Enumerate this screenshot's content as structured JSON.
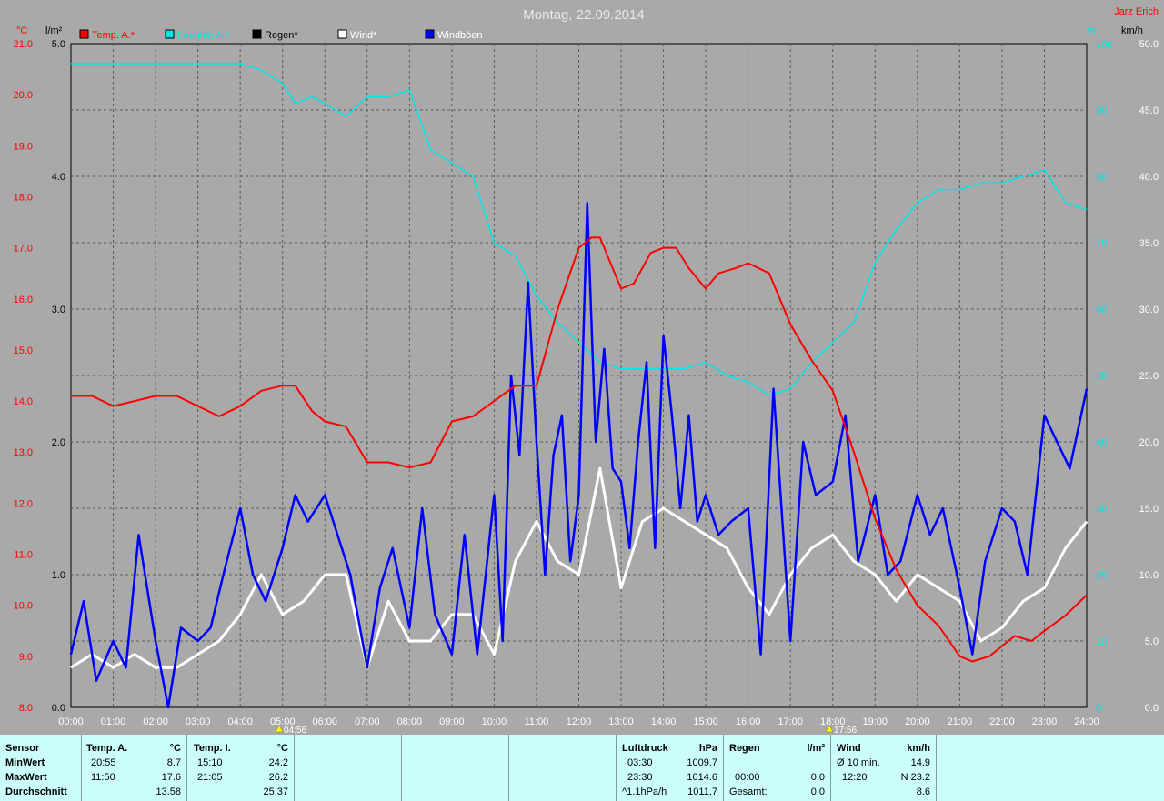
{
  "title": "Montag, 22.09.2014",
  "author": "Jarz Erich",
  "colors": {
    "temp": "#ff0000",
    "humid": "#00e5e5",
    "rain": "#000000",
    "wind": "#ffffff",
    "gust": "#0000ff",
    "plot_bg": "#a9a9a9",
    "panel_bg": "#ccfdfd"
  },
  "axes": {
    "temp_unit": "°C",
    "rain_unit": "l/m²",
    "humid_unit": "%",
    "wind_unit": "km/h",
    "temp_ticks": [
      "8.0",
      "9.0",
      "10.0",
      "11.0",
      "12.0",
      "13.0",
      "14.0",
      "15.0",
      "16.0",
      "17.0",
      "18.0",
      "19.0",
      "20.0",
      "21.0"
    ],
    "rain_ticks": [
      "0.0",
      "1.0",
      "2.0",
      "3.0",
      "4.0",
      "5.0"
    ],
    "humid_ticks": [
      "0",
      "10",
      "20",
      "30",
      "40",
      "50",
      "60",
      "70",
      "80",
      "90",
      "100"
    ],
    "wind_ticks": [
      "0.0",
      "5.0",
      "10.0",
      "15.0",
      "20.0",
      "25.0",
      "30.0",
      "35.0",
      "40.0",
      "45.0",
      "50.0"
    ],
    "time_ticks": [
      "00:00",
      "01:00",
      "02:00",
      "03:00",
      "04:00",
      "05:00",
      "06:00",
      "07:00",
      "08:00",
      "09:00",
      "10:00",
      "11:00",
      "12:00",
      "13:00",
      "14:00",
      "15:00",
      "16:00",
      "17:00",
      "18:00",
      "19:00",
      "20:00",
      "21:00",
      "22:00",
      "23:00",
      "24:00"
    ],
    "sunrise": "04:56",
    "sunset": "17:56"
  },
  "chart_data": {
    "type": "line",
    "x_unit": "hours",
    "ylim_temp": [
      8,
      21
    ],
    "ylim_rain": [
      0,
      5
    ],
    "ylim_humid": [
      0,
      100
    ],
    "ylim_wind": [
      0,
      50
    ],
    "grid": true,
    "series": [
      {
        "name": "Temp. A.*",
        "axis": "temp",
        "x": [
          0,
          0.5,
          1,
          1.5,
          2,
          2.5,
          3,
          3.5,
          4,
          4.5,
          5,
          5.3,
          5.7,
          6,
          6.5,
          7,
          7.5,
          8,
          8.5,
          9,
          9.5,
          10,
          10.5,
          11,
          11.5,
          12,
          12.3,
          12.5,
          13,
          13.3,
          13.7,
          14,
          14.3,
          14.6,
          15,
          15.3,
          15.7,
          16,
          16.5,
          17,
          17.5,
          18,
          18.5,
          19,
          19.5,
          20,
          20.5,
          21,
          21.3,
          21.7,
          22,
          22.3,
          22.7,
          23,
          23.5,
          24
        ],
        "values": [
          14.1,
          14.1,
          13.9,
          14.0,
          14.1,
          14.1,
          13.9,
          13.7,
          13.9,
          14.2,
          14.3,
          14.3,
          13.8,
          13.6,
          13.5,
          12.8,
          12.8,
          12.7,
          12.8,
          13.6,
          13.7,
          14.0,
          14.3,
          14.3,
          15.8,
          17.0,
          17.2,
          17.2,
          16.2,
          16.3,
          16.9,
          17.0,
          17.0,
          16.6,
          16.2,
          16.5,
          16.6,
          16.7,
          16.5,
          15.5,
          14.8,
          14.2,
          13.0,
          11.7,
          10.7,
          10.0,
          9.6,
          9.0,
          8.9,
          9.0,
          9.2,
          9.4,
          9.3,
          9.5,
          9.8,
          10.2
        ]
      },
      {
        "name": "Feuchte A.*",
        "axis": "humid",
        "x": [
          0,
          1,
          2,
          3,
          4,
          4.5,
          5,
          5.3,
          5.7,
          6,
          6.5,
          7,
          7.5,
          8,
          8.5,
          9,
          9.5,
          10,
          10.5,
          11,
          11.5,
          12,
          12.5,
          13,
          13.5,
          14,
          14.5,
          15,
          15.5,
          16,
          16.5,
          17,
          17.5,
          18,
          18.5,
          19,
          19.5,
          20,
          20.5,
          21,
          21.5,
          22,
          22.5,
          23,
          23.5,
          24
        ],
        "values": [
          97,
          97,
          97,
          97,
          97,
          96,
          94,
          91,
          92,
          91,
          89,
          92,
          92,
          93,
          84,
          82,
          80,
          70,
          68,
          62,
          58,
          55,
          52,
          51,
          51,
          51,
          51,
          52,
          50,
          49,
          47,
          48,
          52,
          55,
          58,
          67,
          72,
          76,
          78,
          78,
          79,
          79,
          80,
          81,
          76,
          75
        ]
      },
      {
        "name": "Regen*",
        "axis": "rain",
        "x": [
          0,
          24
        ],
        "values": [
          0,
          0
        ]
      },
      {
        "name": "Wind*",
        "axis": "wind",
        "x": [
          0,
          0.5,
          1,
          1.5,
          2,
          2.5,
          3,
          3.5,
          4,
          4.5,
          5,
          5.5,
          6,
          6.5,
          7,
          7.5,
          8,
          8.5,
          9,
          9.5,
          10,
          10.5,
          11,
          11.5,
          12,
          12.5,
          13,
          13.5,
          14,
          14.5,
          15,
          15.5,
          16,
          16.5,
          17,
          17.5,
          18,
          18.5,
          19,
          19.5,
          20,
          20.5,
          21,
          21.5,
          22,
          22.5,
          23,
          23.5,
          24
        ],
        "values": [
          3,
          4,
          3,
          4,
          3,
          3,
          4,
          5,
          7,
          10,
          7,
          8,
          10,
          10,
          3,
          8,
          5,
          5,
          7,
          7,
          4,
          11,
          14,
          11,
          10,
          18,
          9,
          14,
          15,
          14,
          13,
          12,
          9,
          7,
          10,
          12,
          13,
          11,
          10,
          8,
          10,
          9,
          8,
          5,
          6,
          8,
          9,
          12,
          14
        ]
      },
      {
        "name": "Windböen",
        "axis": "wind",
        "x": [
          0,
          0.3,
          0.6,
          1,
          1.3,
          1.6,
          2,
          2.3,
          2.6,
          3,
          3.3,
          3.6,
          4,
          4.3,
          4.6,
          5,
          5.3,
          5.6,
          6,
          6.3,
          6.6,
          7,
          7.3,
          7.6,
          8,
          8.3,
          8.6,
          9,
          9.3,
          9.6,
          10,
          10.2,
          10.4,
          10.6,
          10.8,
          11,
          11.2,
          11.4,
          11.6,
          11.8,
          12,
          12.2,
          12.4,
          12.6,
          12.8,
          13,
          13.2,
          13.4,
          13.6,
          13.8,
          14,
          14.2,
          14.4,
          14.6,
          14.8,
          15,
          15.3,
          15.6,
          16,
          16.3,
          16.6,
          17,
          17.3,
          17.6,
          18,
          18.3,
          18.6,
          19,
          19.3,
          19.6,
          20,
          20.3,
          20.6,
          21,
          21.3,
          21.6,
          22,
          22.3,
          22.6,
          23,
          23.3,
          23.6,
          24
        ],
        "values": [
          4,
          8,
          2,
          5,
          3,
          13,
          5,
          0,
          6,
          5,
          6,
          10,
          15,
          10,
          8,
          12,
          16,
          14,
          16,
          13,
          10,
          3,
          9,
          12,
          6,
          15,
          7,
          4,
          13,
          4,
          16,
          5,
          25,
          19,
          32,
          20,
          10,
          19,
          22,
          11,
          16,
          38,
          20,
          27,
          18,
          17,
          12,
          20,
          26,
          12,
          28,
          22,
          15,
          22,
          14,
          16,
          13,
          14,
          15,
          4,
          24,
          5,
          20,
          16,
          17,
          22,
          11,
          16,
          10,
          11,
          16,
          13,
          15,
          9,
          4,
          11,
          15,
          14,
          10,
          22,
          20,
          18,
          24
        ]
      }
    ]
  },
  "footer": {
    "sensor": {
      "header": "Sensor",
      "min": "MinWert",
      "max": "MaxWert",
      "avg": "Durchschnitt"
    },
    "temp_a": {
      "header": "Temp. A.",
      "unit": "°C",
      "min_time": "20:55",
      "min_val": "8.7",
      "max_time": "11:50",
      "max_val": "17.6",
      "avg_val": "13.58"
    },
    "temp_i": {
      "header": "Temp. I.",
      "unit": "°C",
      "min_time": "15:10",
      "min_val": "24.2",
      "max_time": "21:05",
      "max_val": "26.2",
      "avg_val": "25.37"
    },
    "pressure": {
      "header": "Luftdruck",
      "unit": "hPa",
      "min_time": "03:30",
      "min_val": "1009.7",
      "max_time": "23:30",
      "max_val": "1014.6",
      "avg_label": "^1.1hPa/h",
      "avg_val": "1011.7"
    },
    "rain": {
      "header": "Regen",
      "unit": "l/m²",
      "time": "00:00",
      "val": "0.0",
      "total_label": "Gesamt:",
      "total_val": "0.0"
    },
    "wind": {
      "header": "Wind",
      "unit": "km/h",
      "avg_label": "Ø 10 min.",
      "avg_val": "14.9",
      "max_time": "12:20",
      "max_val": "N 23.2",
      "day_val": "8.6"
    }
  }
}
